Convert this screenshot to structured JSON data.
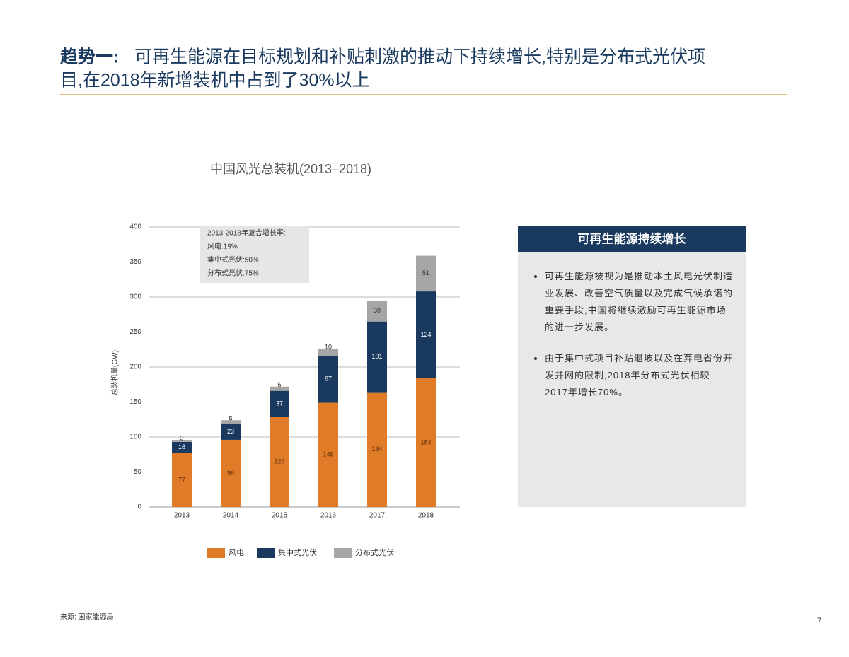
{
  "header": {
    "title_lead": "趋势一:",
    "title_line1": "可再生能源在目标规划和补贴刺激的推动下持续增长,特别是分布式光伏项",
    "title_line2": "目,在2018年新增装机中占到了30%以上"
  },
  "chart_data": {
    "type": "stacked_bar",
    "title": "中国风光总装机(2013–2018)",
    "y_label": "总装机量(GW)",
    "categories": [
      "2013",
      "2014",
      "2015",
      "2016",
      "2017",
      "2018"
    ],
    "series": [
      {
        "name": "风电",
        "color": "#e07b28",
        "values": [
          77,
          96,
          129,
          149,
          164,
          184
        ]
      },
      {
        "name": "集中式光伏",
        "color": "#193a5e",
        "values": [
          16,
          23,
          37,
          67,
          101,
          124
        ]
      },
      {
        "name": "分布式光伏",
        "color": "#a6a6a6",
        "values": [
          3,
          5,
          6,
          10,
          30,
          51
        ]
      }
    ],
    "ylim": [
      0,
      400
    ],
    "yticks": [
      0,
      50,
      100,
      150,
      200,
      250,
      300,
      350,
      400
    ],
    "grid": true,
    "annotation": [
      "2013-2018年复合增长率:",
      "风电:19%",
      "集中式光伏:50%",
      "分布式光伏:75%"
    ]
  },
  "sidebar": {
    "title": "可再生能源持续增长",
    "bullets": [
      "可再生能源被视为是推动本土风电光伏制造业发展、改善空气质量以及完成气候承诺的重要手段,中国将继续激励可再生能源市场的进一步发展。",
      "由于集中式项目补贴退坡以及在弃电省份开发并网的限制,2018年分布式光伏相较2017年增长70%。"
    ]
  },
  "footer": {
    "source": "来源: 国家能源局",
    "page": "7"
  }
}
